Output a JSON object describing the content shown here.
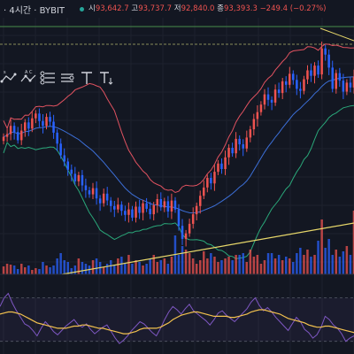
{
  "header": {
    "symbol_label": "· 4시간 · BYBIT",
    "open_label": "시",
    "open_value": "93,642.7",
    "high_label": "고",
    "high_value": "93,737.7",
    "low_label": "저",
    "low_value": "92,840.0",
    "close_label": "종",
    "close_value": "93,393.3",
    "change_value": "−249.4 (−0.27%)"
  },
  "toolbar": {
    "tools": [
      "path-tool-icon",
      "polyline-tool-icon",
      "pen-tool-icon",
      "brush-tool-icon",
      "text-tool-icon",
      "anchored-text-tool-icon"
    ]
  },
  "colors": {
    "background": "#131722",
    "up": "#ef5350",
    "down": "#2962ff",
    "bb_upper": "#e05260",
    "bb_basis": "#3c6fd8",
    "bb_lower": "#2aa87a",
    "trendline": "#e8d86a",
    "rsi_line": "#7e57c2",
    "rsi_signal": "#f2c14e"
  },
  "chart_data": {
    "type": "candlestick",
    "closes": [
      94.2,
      94.6,
      95.8,
      94.9,
      93.7,
      95.1,
      96.3,
      95.4,
      96.9,
      97.6,
      96.5,
      95.8,
      97.1,
      96.4,
      94.8,
      93.2,
      91.5,
      90.6,
      89.4,
      88.8,
      87.7,
      88.6,
      87.1,
      86.4,
      85.8,
      86.7,
      85.2,
      84.5,
      85.9,
      84.9,
      84.1,
      83.6,
      84.3,
      83.4,
      82.8,
      83.6,
      82.4,
      84.0,
      83.1,
      84.5,
      83.7,
      82.9,
      84.2,
      85.1,
      83.9,
      84.8,
      83.3,
      84.9,
      83.6,
      81.2,
      79.3,
      80.1,
      81.5,
      82.9,
      84.1,
      85.6,
      86.8,
      88.2,
      87.4,
      89.1,
      90.3,
      89.5,
      91.2,
      92.6,
      91.8,
      93.9,
      93.1,
      92.5,
      94.1,
      95.3,
      96.8,
      97.8,
      98.9,
      100.4,
      99.6,
      99.2,
      101.1,
      100.6,
      102.3,
      101.8,
      103.4,
      102.5,
      101.2,
      100.9,
      102.6,
      103.9,
      103.1,
      104.6,
      103.3,
      107.1,
      106.2,
      104.3,
      101.2,
      103.5,
      102.4,
      100.8,
      102.1,
      101.4,
      103.0
    ],
    "volumes": [
      9,
      12,
      11,
      10,
      6,
      12,
      8,
      10,
      5,
      7,
      6,
      14,
      10,
      8,
      10,
      18,
      24,
      16,
      14,
      7,
      10,
      18,
      14,
      12,
      10,
      16,
      18,
      14,
      8,
      12,
      16,
      10,
      18,
      20,
      12,
      22,
      12,
      16,
      14,
      10,
      12,
      18,
      22,
      14,
      16,
      18,
      12,
      20,
      44,
      22,
      32,
      28,
      24,
      18,
      12,
      16,
      26,
      18,
      24,
      20,
      14,
      16,
      18,
      20,
      16,
      22,
      22,
      24,
      14,
      28,
      20,
      22,
      12,
      16,
      24,
      24,
      18,
      22,
      16,
      20,
      18,
      14,
      24,
      30,
      22,
      28,
      20,
      22,
      38,
      62,
      30,
      40,
      22,
      28,
      20,
      26,
      32,
      22,
      72
    ],
    "rsi_line": [
      62,
      70,
      74,
      65,
      58,
      52,
      46,
      44,
      40,
      35,
      42,
      48,
      44,
      39,
      36,
      40,
      44,
      47,
      50,
      45,
      43,
      46,
      41,
      37,
      40,
      43,
      45,
      39,
      33,
      28,
      31,
      35,
      40,
      44,
      48,
      46,
      42,
      38,
      35,
      42,
      50,
      57,
      62,
      59,
      55,
      60,
      64,
      58,
      55,
      52,
      49,
      45,
      50,
      56,
      58,
      54,
      51,
      48,
      52,
      56,
      60,
      66,
      70,
      63,
      58,
      61,
      57,
      52,
      48,
      44,
      40,
      46,
      52,
      48,
      41,
      38,
      33,
      36,
      43,
      53,
      50,
      45,
      42,
      37,
      30,
      33,
      35
    ],
    "rsi_signal": [
      55,
      56,
      57,
      57,
      56,
      55,
      53,
      51,
      49,
      47,
      46,
      45,
      44,
      43,
      42,
      42,
      42,
      43,
      44,
      44,
      45,
      45,
      44,
      43,
      42,
      42,
      41,
      40,
      39,
      38,
      37,
      37,
      38,
      39,
      41,
      42,
      42,
      42,
      42,
      43,
      45,
      47,
      50,
      52,
      54,
      55,
      56,
      57,
      57,
      56,
      55,
      54,
      53,
      53,
      53,
      53,
      52,
      52,
      53,
      54,
      55,
      57,
      58,
      59,
      59,
      58,
      57,
      56,
      55,
      53,
      51,
      50,
      49,
      48,
      47,
      45,
      44,
      43,
      43,
      44,
      44,
      43,
      42,
      41,
      40,
      39,
      38
    ],
    "yrange": [
      78,
      109
    ],
    "rsi_range": [
      20,
      85
    ]
  }
}
